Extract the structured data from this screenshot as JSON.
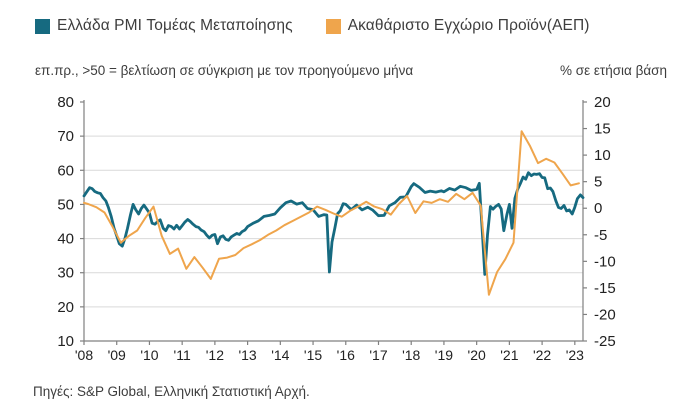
{
  "legend": {
    "items": [
      {
        "label": "Ελλάδα PMI Τομέας Μεταποίησης",
        "color": "#166A80"
      },
      {
        "label": "Ακαθάριστο Εγχώριο Προϊόν(ΑΕΠ)",
        "color": "#EFA54C"
      }
    ]
  },
  "captions": {
    "left": "επ.πρ., >50 = βελτίωση σε σύγκριση με τον προηγούμενο μήνα",
    "right": "% σε ετήσια βάση"
  },
  "source": "Πηγές: S&P Global, Ελληνική Στατιστική Αρχή.",
  "chart_data": {
    "type": "line",
    "title": "",
    "grid": true,
    "grid_color": "#d9d9d9",
    "axis_color": "#808080",
    "x_axis": {
      "min": 2008,
      "max": 2023.25,
      "tick_years": [
        2008,
        2009,
        2010,
        2011,
        2012,
        2013,
        2014,
        2015,
        2016,
        2017,
        2018,
        2019,
        2020,
        2021,
        2022,
        2023
      ],
      "tick_labels": [
        "'08",
        "'09",
        "'10",
        "'11",
        "'12",
        "'13",
        "'14",
        "'15",
        "'16",
        "'17",
        "'18",
        "'19",
        "'20",
        "'21",
        "'22",
        "'23"
      ]
    },
    "left_axis": {
      "min": 10,
      "max": 80,
      "ticks": [
        80,
        70,
        60,
        50,
        40,
        30,
        20,
        10
      ],
      "gridline_values": [
        70,
        60,
        50,
        40,
        30,
        20
      ]
    },
    "right_axis": {
      "min": -25,
      "max": 20,
      "ticks": [
        20,
        15,
        10,
        5,
        0,
        -5,
        -10,
        -15,
        -20,
        -25
      ]
    },
    "series": [
      {
        "name": "Ελλάδα PMI Τομέας Μεταποίησης",
        "axis": "left",
        "color": "#166A80",
        "width": 2.8,
        "points": [
          [
            2008.0,
            52.5
          ],
          [
            2008.08,
            53.6
          ],
          [
            2008.17,
            54.9
          ],
          [
            2008.25,
            54.6
          ],
          [
            2008.33,
            53.8
          ],
          [
            2008.42,
            53.4
          ],
          [
            2008.5,
            53.2
          ],
          [
            2008.58,
            52.0
          ],
          [
            2008.67,
            51.0
          ],
          [
            2008.75,
            49.0
          ],
          [
            2008.83,
            46.5
          ],
          [
            2008.92,
            43.0
          ],
          [
            2009.0,
            40.8
          ],
          [
            2009.08,
            38.5
          ],
          [
            2009.17,
            37.8
          ],
          [
            2009.25,
            40.0
          ],
          [
            2009.33,
            43.0
          ],
          [
            2009.42,
            47.0
          ],
          [
            2009.5,
            50.0
          ],
          [
            2009.58,
            48.5
          ],
          [
            2009.67,
            47.2
          ],
          [
            2009.75,
            48.8
          ],
          [
            2009.83,
            49.8
          ],
          [
            2009.92,
            48.6
          ],
          [
            2010.0,
            47.5
          ],
          [
            2010.08,
            44.5
          ],
          [
            2010.17,
            44.2
          ],
          [
            2010.25,
            45.0
          ],
          [
            2010.33,
            45.5
          ],
          [
            2010.42,
            43.0
          ],
          [
            2010.5,
            42.3
          ],
          [
            2010.58,
            43.8
          ],
          [
            2010.67,
            43.5
          ],
          [
            2010.75,
            42.8
          ],
          [
            2010.83,
            43.9
          ],
          [
            2010.92,
            42.8
          ],
          [
            2011.0,
            43.8
          ],
          [
            2011.08,
            44.8
          ],
          [
            2011.17,
            45.6
          ],
          [
            2011.25,
            45.0
          ],
          [
            2011.33,
            44.2
          ],
          [
            2011.42,
            43.5
          ],
          [
            2011.5,
            43.3
          ],
          [
            2011.58,
            42.5
          ],
          [
            2011.67,
            42.0
          ],
          [
            2011.75,
            41.0
          ],
          [
            2011.83,
            40.2
          ],
          [
            2011.92,
            41.0
          ],
          [
            2012.0,
            41.2
          ],
          [
            2012.08,
            38.5
          ],
          [
            2012.17,
            40.5
          ],
          [
            2012.25,
            40.8
          ],
          [
            2012.33,
            39.8
          ],
          [
            2012.42,
            39.5
          ],
          [
            2012.5,
            40.5
          ],
          [
            2012.58,
            41.0
          ],
          [
            2012.67,
            41.5
          ],
          [
            2012.75,
            41.2
          ],
          [
            2012.83,
            42.0
          ],
          [
            2012.92,
            42.5
          ],
          [
            2013.0,
            43.5
          ],
          [
            2013.17,
            44.5
          ],
          [
            2013.33,
            45.2
          ],
          [
            2013.5,
            46.5
          ],
          [
            2013.67,
            46.8
          ],
          [
            2013.83,
            47.2
          ],
          [
            2014.0,
            49.0
          ],
          [
            2014.17,
            50.5
          ],
          [
            2014.33,
            51.0
          ],
          [
            2014.5,
            50.1
          ],
          [
            2014.67,
            50.5
          ],
          [
            2014.83,
            48.8
          ],
          [
            2015.0,
            48.5
          ],
          [
            2015.17,
            46.5
          ],
          [
            2015.33,
            47.0
          ],
          [
            2015.42,
            46.9
          ],
          [
            2015.5,
            30.2
          ],
          [
            2015.58,
            39.0
          ],
          [
            2015.67,
            43.3
          ],
          [
            2015.75,
            47.3
          ],
          [
            2015.83,
            48.1
          ],
          [
            2015.92,
            50.2
          ],
          [
            2016.0,
            50.0
          ],
          [
            2016.17,
            48.5
          ],
          [
            2016.33,
            49.8
          ],
          [
            2016.5,
            48.4
          ],
          [
            2016.67,
            49.2
          ],
          [
            2016.83,
            48.3
          ],
          [
            2017.0,
            46.7
          ],
          [
            2017.17,
            46.8
          ],
          [
            2017.33,
            49.6
          ],
          [
            2017.5,
            50.5
          ],
          [
            2017.67,
            52.1
          ],
          [
            2017.83,
            52.2
          ],
          [
            2018.0,
            55.2
          ],
          [
            2018.08,
            56.1
          ],
          [
            2018.25,
            55.0
          ],
          [
            2018.42,
            53.5
          ],
          [
            2018.58,
            53.9
          ],
          [
            2018.75,
            53.6
          ],
          [
            2018.92,
            54.0
          ],
          [
            2019.0,
            53.7
          ],
          [
            2019.17,
            54.7
          ],
          [
            2019.33,
            54.2
          ],
          [
            2019.5,
            55.3
          ],
          [
            2019.67,
            54.9
          ],
          [
            2019.83,
            54.1
          ],
          [
            2020.0,
            54.4
          ],
          [
            2020.08,
            56.2
          ],
          [
            2020.17,
            42.5
          ],
          [
            2020.25,
            29.5
          ],
          [
            2020.33,
            41.1
          ],
          [
            2020.42,
            49.4
          ],
          [
            2020.5,
            48.6
          ],
          [
            2020.58,
            49.4
          ],
          [
            2020.67,
            50.0
          ],
          [
            2020.75,
            48.7
          ],
          [
            2020.83,
            42.3
          ],
          [
            2020.92,
            46.9
          ],
          [
            2021.0,
            50.0
          ],
          [
            2021.08,
            43.0
          ],
          [
            2021.17,
            51.8
          ],
          [
            2021.25,
            54.4
          ],
          [
            2021.33,
            56.0
          ],
          [
            2021.42,
            58.0
          ],
          [
            2021.5,
            57.4
          ],
          [
            2021.58,
            59.3
          ],
          [
            2021.67,
            58.4
          ],
          [
            2021.75,
            58.9
          ],
          [
            2021.83,
            58.8
          ],
          [
            2021.92,
            59.0
          ],
          [
            2022.0,
            57.9
          ],
          [
            2022.08,
            57.8
          ],
          [
            2022.17,
            54.6
          ],
          [
            2022.25,
            54.8
          ],
          [
            2022.33,
            53.8
          ],
          [
            2022.42,
            51.1
          ],
          [
            2022.5,
            49.1
          ],
          [
            2022.58,
            48.8
          ],
          [
            2022.67,
            49.7
          ],
          [
            2022.75,
            48.1
          ],
          [
            2022.83,
            48.4
          ],
          [
            2022.92,
            47.2
          ],
          [
            2023.0,
            49.2
          ],
          [
            2023.08,
            51.7
          ],
          [
            2023.17,
            52.8
          ],
          [
            2023.25,
            52.0
          ]
        ]
      },
      {
        "name": "Ακαθάριστο Εγχώριο Προϊόν(ΑΕΠ)",
        "axis": "right",
        "color": "#EFA54C",
        "width": 2,
        "points": [
          [
            2008.0,
            1.0
          ],
          [
            2008.125,
            0.8
          ],
          [
            2008.375,
            0.2
          ],
          [
            2008.625,
            -0.8
          ],
          [
            2008.875,
            -3.5
          ],
          [
            2009.125,
            -6.5
          ],
          [
            2009.375,
            -5.2
          ],
          [
            2009.625,
            -4.2
          ],
          [
            2009.875,
            -1.8
          ],
          [
            2010.125,
            0.3
          ],
          [
            2010.375,
            -5.2
          ],
          [
            2010.625,
            -8.6
          ],
          [
            2010.875,
            -7.6
          ],
          [
            2011.125,
            -11.4
          ],
          [
            2011.375,
            -9.2
          ],
          [
            2011.625,
            -11.2
          ],
          [
            2011.875,
            -13.3
          ],
          [
            2012.125,
            -9.5
          ],
          [
            2012.375,
            -9.3
          ],
          [
            2012.625,
            -8.8
          ],
          [
            2012.875,
            -7.5
          ],
          [
            2013.125,
            -6.8
          ],
          [
            2013.375,
            -6.0
          ],
          [
            2013.625,
            -5.0
          ],
          [
            2013.875,
            -4.2
          ],
          [
            2014.125,
            -3.2
          ],
          [
            2014.375,
            -2.4
          ],
          [
            2014.625,
            -1.6
          ],
          [
            2014.875,
            -0.8
          ],
          [
            2015.125,
            0.3
          ],
          [
            2015.375,
            -0.3
          ],
          [
            2015.625,
            -1.0
          ],
          [
            2015.875,
            -1.6
          ],
          [
            2016.125,
            -0.5
          ],
          [
            2016.375,
            0.3
          ],
          [
            2016.625,
            1.2
          ],
          [
            2016.875,
            0.3
          ],
          [
            2017.125,
            -0.2
          ],
          [
            2017.375,
            -1.2
          ],
          [
            2017.625,
            0.8
          ],
          [
            2017.875,
            2.3
          ],
          [
            2018.125,
            -0.9
          ],
          [
            2018.375,
            1.3
          ],
          [
            2018.625,
            1.0
          ],
          [
            2018.875,
            1.7
          ],
          [
            2019.125,
            1.2
          ],
          [
            2019.375,
            2.7
          ],
          [
            2019.625,
            1.7
          ],
          [
            2019.875,
            2.9
          ],
          [
            2020.125,
            0.5
          ],
          [
            2020.375,
            -16.3
          ],
          [
            2020.625,
            -12.0
          ],
          [
            2020.875,
            -9.6
          ],
          [
            2021.125,
            -6.5
          ],
          [
            2021.375,
            14.5
          ],
          [
            2021.625,
            11.8
          ],
          [
            2021.875,
            8.5
          ],
          [
            2022.125,
            9.3
          ],
          [
            2022.375,
            8.6
          ],
          [
            2022.625,
            6.5
          ],
          [
            2022.875,
            4.3
          ],
          [
            2023.125,
            4.7
          ]
        ]
      }
    ]
  }
}
